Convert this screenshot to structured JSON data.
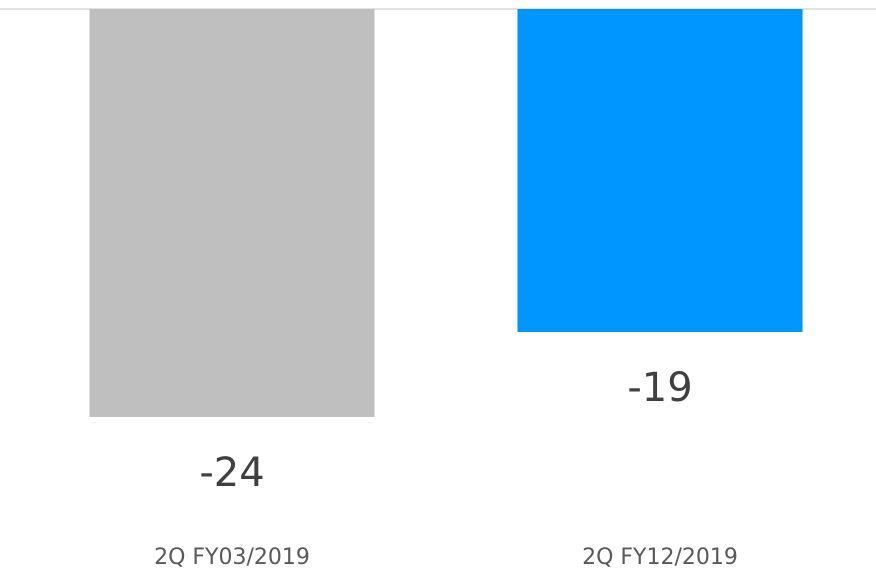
{
  "chart_data": {
    "type": "bar",
    "categories": [
      "2Q FY03/2019",
      "2Q FY12/2019"
    ],
    "values": [
      -24,
      -19
    ],
    "colors": [
      "#bfbfbf",
      "#0096ff"
    ],
    "ylim": [
      -30,
      0
    ]
  }
}
